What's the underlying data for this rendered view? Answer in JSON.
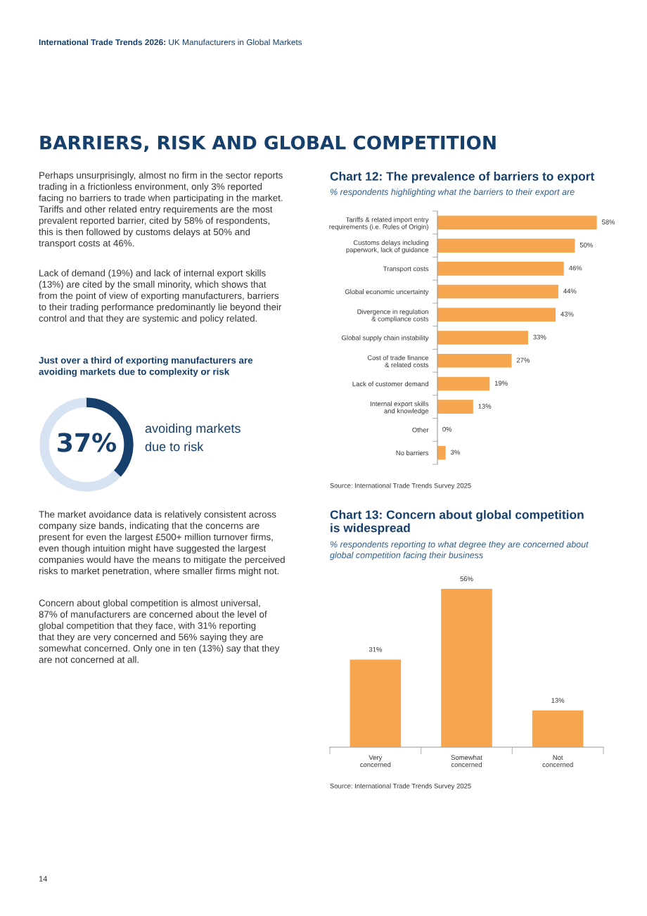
{
  "chart_data": [
    {
      "type": "donut",
      "title": "Just over a third of exporting manufacturers are\navoiding markets due to complexity or risk",
      "categories": [
        null,
        null
      ],
      "values": [
        37,
        63
      ],
      "colors": [
        "#163f6b",
        "#d7e2f2"
      ],
      "value_labels": [
        "37%",
        null
      ],
      "annotations": [
        "International Trade Trends 2026:",
        "UK Manufacturers in Global Markets",
        "BARRIERS, RISK AND GLOBAL COMPETITION",
        "Perhaps unsurprisingly, almost no firm in the sector reports\ntrading in a frictionless environment, only 3% reported\nfacing no barriers to trade when participating in the market.\nTariffs and other related entry requirements are the most\nprevalent reported barrier, cited by 58% of respondents,\nthis is then followed by customs delays at 50% and\ntransport costs at 46%.",
        "Lack of demand (19%) and lack of internal export skills\n(13%) are cited by the small minority, which shows that\nfrom the point of view of exporting manufacturers, barriers\nto their trading performance predominantly lie beyond their\ncontrol and that they are systemic and policy related.",
        "avoiding markets\ndue to risk",
        "The market avoidance data is relatively consistent across\ncompany size bands, indicating that the concerns are\npresent for even the largest £500+ million turnover firms,\neven though intuition might have suggested the largest\ncompanies would have the means to mitigate the perceived\nrisks to market penetration, where smaller firms might not.",
        "Concern about global competition is almost universal,\n87% of manufacturers are concerned about the level of\nglobal competition that they face, with 31% reporting\nthat they are very concerned and 56% saying they are\nsomewhat concerned. Only one in ten (13%) say that they\nare not concerned at all.",
        "14"
      ]
    },
    {
      "type": "bar",
      "orientation": "horizontal",
      "title": "Chart 12: The prevalence of barriers to export",
      "subtitle": "% respondents highlighting what the barriers to their export are",
      "categories": [
        "Tariffs & related import entry\nrequirements (i.e. Rules of Origin)",
        "Customs delays including\npaperwork, lack of guidance",
        "Transport costs",
        "Global economic uncertainty",
        "Divergence in regulation\n& compliance costs",
        "Global supply chain instability",
        "Cost of trade finance\n& related costs",
        "Lack of customer demand",
        "Internal export skills\nand knowledge",
        "Other",
        "No barriers"
      ],
      "values": [
        58,
        50,
        46,
        44,
        43,
        33,
        27,
        19,
        13,
        0,
        3
      ],
      "value_labels": [
        "58%",
        "50%",
        "46%",
        "44%",
        "43%",
        "33%",
        "27%",
        "19%",
        "13%",
        "0%",
        "3%"
      ],
      "color": "#f6a64e",
      "annotations": [
        "Source: International Trade Trends Survey 2025"
      ]
    },
    {
      "type": "bar",
      "title": "Chart 13: Concern about global competition\nis widespread",
      "subtitle": "% respondents reporting to what degree they are concerned about\nglobal competition facing their business",
      "categories": [
        "Very\nconcerned",
        "Somewhat\nconcerned",
        "Not\nconcerned"
      ],
      "values": [
        31,
        56,
        13
      ],
      "value_labels": [
        "31%",
        "56%",
        "13%"
      ],
      "color": "#f6a64e",
      "annotations": [
        "Source: International Trade Trends Survey 2025"
      ]
    }
  ]
}
